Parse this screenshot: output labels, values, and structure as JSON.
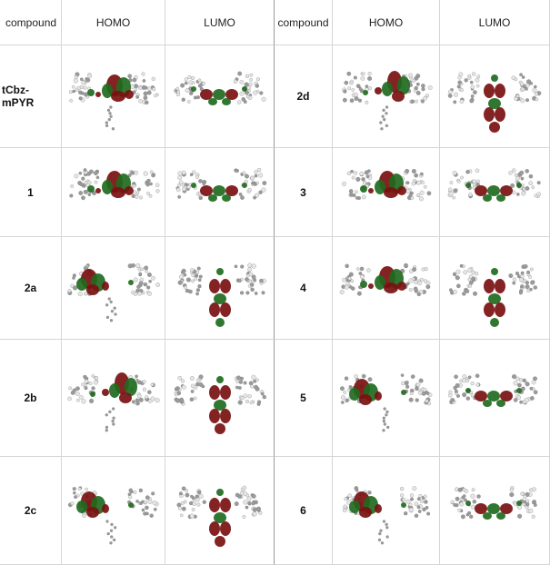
{
  "headers": {
    "compound_left": "compound",
    "homo_left": "HOMO",
    "lumo_left": "LUMO",
    "compound_right": "compound",
    "homo_right": "HOMO",
    "lumo_right": "LUMO"
  },
  "rows": [
    {
      "left": "tCbz-mPYR",
      "right": "2d"
    },
    {
      "left": "1",
      "right": "3"
    },
    {
      "left": "2a",
      "right": "4"
    },
    {
      "left": "2b",
      "right": "5"
    },
    {
      "left": "2c",
      "right": "6"
    }
  ],
  "colors": {
    "lobe_red": "#7a1010",
    "lobe_green": "#1f6b1f",
    "atom_grey": "#9a9a9a",
    "atom_white": "#e6e6e6",
    "grid_line": "#d6d6d6"
  }
}
